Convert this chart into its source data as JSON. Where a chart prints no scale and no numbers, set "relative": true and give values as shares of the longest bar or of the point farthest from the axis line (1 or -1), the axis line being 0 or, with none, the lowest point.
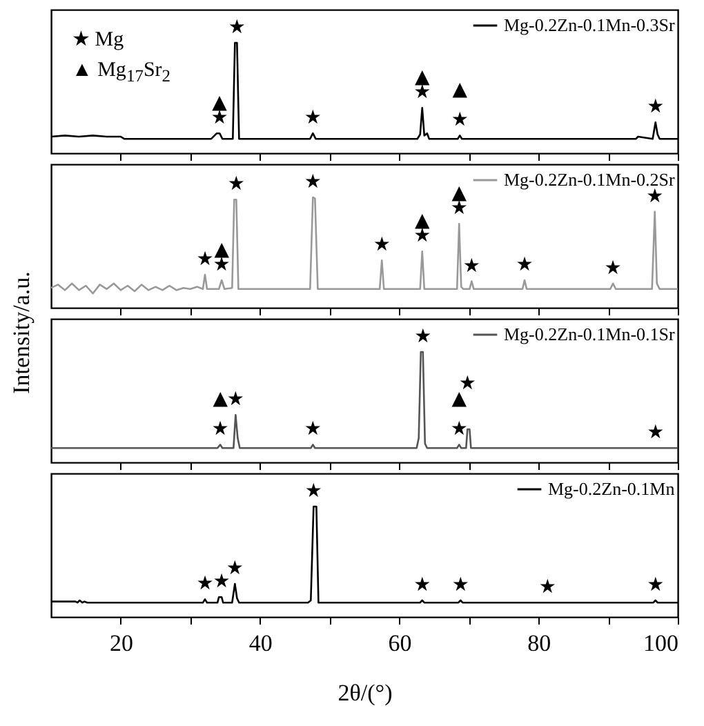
{
  "chart_data": [
    {
      "type": "line",
      "relative": true,
      "legend": "top right",
      "tick_labels": false,
      "xlim": [
        10,
        100
      ],
      "xticks": [
        20,
        {
          "value": 30,
          "label": null
        },
        40,
        {
          "value": 50,
          "label": null
        },
        60,
        {
          "value": 70,
          "label": null
        },
        80,
        {
          "value": 90,
          "label": null
        },
        100
      ],
      "x": [
        10,
        12,
        14,
        16,
        18,
        20,
        20.5,
        33,
        33.8,
        34.2,
        34.6,
        36.1,
        36.4,
        36.7,
        37.0,
        47.2,
        47.6,
        48.0,
        62.6,
        63.0,
        63.3,
        63.6,
        64.0,
        64.3,
        68.4,
        68.7,
        69.0,
        94,
        94.3,
        96.4,
        96.8,
        97.1,
        97.4,
        100
      ],
      "series": [
        {
          "name": "Mg-0.2Zn-0.1Mn-0.3Sr",
          "color": "#000000",
          "values": [
            0.15,
            0.16,
            0.15,
            0.16,
            0.15,
            0.15,
            0.13,
            0.13,
            0.18,
            0.18,
            0.13,
            0.13,
            1,
            1,
            0.13,
            0.13,
            0.18,
            0.13,
            0.13,
            0.17,
            0.41,
            0.16,
            0.18,
            0.13,
            0.13,
            0.16,
            0.13,
            0.13,
            0.15,
            0.13,
            0.28,
            0.17,
            0.13,
            0.13
          ]
        }
      ],
      "annotations": [
        "★ Mg",
        "▲ Mg$_{17}$Sr$_{2}$",
        {
          "text": "★",
          "x": 36.7,
          "y": 1
        },
        {
          "text": "★",
          "x": 34.2,
          "y": 0.18
        },
        {
          "text": "▲",
          "x": 34.2,
          "y": 0.18
        },
        {
          "text": "★",
          "x": 47.6,
          "y": 0.18
        },
        {
          "text": "★",
          "x": 63.3,
          "y": 0.41
        },
        {
          "text": "▲",
          "x": 63.3,
          "y": 0.41
        },
        {
          "text": "★",
          "x": 68.7,
          "y": 0.16
        },
        {
          "text": "▲",
          "x": 68.7,
          "y": 0.16
        },
        {
          "text": "★",
          "x": 96.8,
          "y": 0.28
        }
      ]
    },
    {
      "type": "line",
      "relative": true,
      "legend": "top right",
      "tick_labels": false,
      "xlim": [
        10,
        100
      ],
      "xticks": [
        20,
        {
          "value": 30,
          "label": null
        },
        40,
        {
          "value": 50,
          "label": null
        },
        60,
        {
          "value": 70,
          "label": null
        },
        80,
        {
          "value": 90,
          "label": null
        },
        100
      ],
      "x": [
        10,
        11,
        12,
        13,
        14,
        15,
        16,
        17,
        18,
        19,
        20,
        21,
        22,
        23,
        24,
        25,
        26,
        27,
        28,
        29,
        30,
        31,
        31.8,
        32.1,
        32.4,
        33,
        34.1,
        34.5,
        34.9,
        36,
        36.3,
        36.6,
        36.9,
        38,
        47.2,
        47.6,
        47.9,
        48.3,
        57.2,
        57.5,
        57.8,
        63.0,
        63.3,
        63.6,
        68.3,
        68.6,
        68.9,
        69.2,
        70.1,
        70.4,
        70.7,
        77.7,
        78,
        78.3,
        90.3,
        90.7,
        91.1,
        96.3,
        96.7,
        97.0,
        97.4,
        100
      ],
      "series": [
        {
          "name": "Mg-0.2Zn-0.1Mn-0.2Sr",
          "color": "#999999",
          "values": [
            0.18,
            0.21,
            0.16,
            0.22,
            0.16,
            0.2,
            0.13,
            0.21,
            0.17,
            0.22,
            0.16,
            0.2,
            0.15,
            0.21,
            0.16,
            0.19,
            0.16,
            0.2,
            0.16,
            0.18,
            0.17,
            0.19,
            0.17,
            0.3,
            0.17,
            0.17,
            0.17,
            0.25,
            0.17,
            0.18,
            0.98,
            0.98,
            0.17,
            0.17,
            0.17,
            1,
            0.99,
            0.17,
            0.17,
            0.43,
            0.17,
            0.17,
            0.51,
            0.17,
            0.17,
            0.76,
            0.19,
            0.17,
            0.17,
            0.24,
            0.17,
            0.17,
            0.25,
            0.17,
            0.17,
            0.22,
            0.17,
            0.17,
            0.87,
            0.22,
            0.17,
            0.17
          ]
        }
      ],
      "annotations": [
        {
          "text": "★",
          "x": 32.1,
          "y": 0.3
        },
        {
          "text": "★",
          "x": 34.5,
          "y": 0.25
        },
        {
          "text": "▲",
          "x": 34.5,
          "y": 0.25
        },
        {
          "text": "★",
          "x": 36.6,
          "y": 0.98
        },
        {
          "text": "★",
          "x": 47.6,
          "y": 1
        },
        {
          "text": "★",
          "x": 57.5,
          "y": 0.43
        },
        {
          "text": "★",
          "x": 63.3,
          "y": 0.51
        },
        {
          "text": "▲",
          "x": 63.3,
          "y": 0.51
        },
        {
          "text": "★",
          "x": 68.6,
          "y": 0.76
        },
        {
          "text": "▲",
          "x": 68.6,
          "y": 0.76
        },
        {
          "text": "★",
          "x": 70.4,
          "y": 0.24
        },
        {
          "text": "★",
          "x": 78,
          "y": 0.25
        },
        {
          "text": "★",
          "x": 90.7,
          "y": 0.22
        },
        {
          "text": "★",
          "x": 96.7,
          "y": 0.87
        }
      ]
    },
    {
      "type": "line",
      "relative": true,
      "ylabel": "Intensity/a.u.",
      "legend": "top right",
      "tick_labels": false,
      "xlim": [
        10,
        100
      ],
      "xticks": [
        20,
        {
          "value": 30,
          "label": null
        },
        40,
        {
          "value": 50,
          "label": null
        },
        60,
        {
          "value": 70,
          "label": null
        },
        80,
        {
          "value": 90,
          "label": null
        },
        100
      ],
      "x": [
        10,
        33.9,
        34.3,
        34.6,
        36.2,
        36.5,
        36.8,
        37.1,
        47.3,
        47.6,
        47.9,
        62.5,
        62.8,
        63.1,
        63.4,
        63.7,
        64.0,
        68.3,
        68.6,
        68.9,
        69.6,
        69.8,
        70.1,
        70.3,
        96.8,
        100
      ],
      "series": [
        {
          "name": "Mg-0.2Zn-0.1Mn-0.1Sr",
          "color": "#555555",
          "values": [
            0.13,
            0.13,
            0.16,
            0.13,
            0.13,
            0.43,
            0.22,
            0.13,
            0.13,
            0.16,
            0.13,
            0.13,
            0.22,
            1,
            1,
            0.17,
            0.13,
            0.13,
            0.16,
            0.13,
            0.13,
            0.3,
            0.3,
            0.13,
            0.13,
            0.13
          ]
        }
      ],
      "annotations": [
        {
          "text": "★",
          "x": 63.4,
          "y": 1
        },
        {
          "text": "★",
          "x": 36.5,
          "y": 0.43
        },
        {
          "text": "★",
          "x": 34.3,
          "y": 0.16
        },
        {
          "text": "▲",
          "x": 34.3,
          "y": 0.16
        },
        {
          "text": "★",
          "x": 47.6,
          "y": 0.16
        },
        {
          "text": "★",
          "x": 68.6,
          "y": 0.16
        },
        {
          "text": "▲",
          "x": 68.6,
          "y": 0.16
        },
        {
          "text": "★",
          "x": 69.8,
          "y": 0.3
        },
        {
          "text": "★",
          "x": 96.8,
          "y": 0.13
        }
      ]
    },
    {
      "type": "line",
      "relative": true,
      "legend": "top right",
      "tick_labels": "x",
      "xlabel": "2θ/(°)",
      "xlim": [
        10,
        100
      ],
      "xticks": [
        20,
        {
          "value": 30,
          "label": null
        },
        40,
        {
          "value": 50,
          "label": null
        },
        60,
        {
          "value": 70,
          "label": null
        },
        80,
        {
          "value": 90,
          "label": null
        },
        100
      ],
      "x": [
        10,
        13.5,
        13.8,
        14.1,
        14.5,
        14.8,
        15.2,
        31.8,
        32.1,
        32.4,
        33.9,
        34.1,
        34.5,
        34.7,
        36.0,
        36.4,
        36.7,
        37.0,
        46.9,
        47.3,
        47.7,
        48.1,
        48.4,
        63.0,
        63.3,
        63.6,
        68.5,
        68.8,
        69.1,
        81.3,
        96.5,
        96.8,
        97.1,
        100
      ],
      "series": [
        {
          "name": "Mg-0.2Zn-0.1Mn",
          "color": "#000000",
          "values": [
            0.14,
            0.14,
            0.13,
            0.15,
            0.13,
            0.14,
            0.13,
            0.13,
            0.16,
            0.13,
            0.13,
            0.18,
            0.18,
            0.13,
            0.13,
            0.3,
            0.17,
            0.13,
            0.13,
            0.15,
            1,
            1,
            0.13,
            0.13,
            0.15,
            0.13,
            0.13,
            0.15,
            0.13,
            0.13,
            0.13,
            0.15,
            0.13,
            0.13
          ]
        }
      ],
      "annotations": [
        {
          "text": "★",
          "x": 47.7,
          "y": 1
        },
        {
          "text": "★",
          "x": 32.1,
          "y": 0.16
        },
        {
          "text": "★",
          "x": 34.5,
          "y": 0.18
        },
        {
          "text": "★",
          "x": 36.4,
          "y": 0.3
        },
        {
          "text": "★",
          "x": 63.3,
          "y": 0.15
        },
        {
          "text": "★",
          "x": 68.8,
          "y": 0.15
        },
        {
          "text": "★",
          "x": 81.3,
          "y": 0.13
        },
        {
          "text": "★",
          "x": 96.8,
          "y": 0.15
        }
      ]
    }
  ]
}
